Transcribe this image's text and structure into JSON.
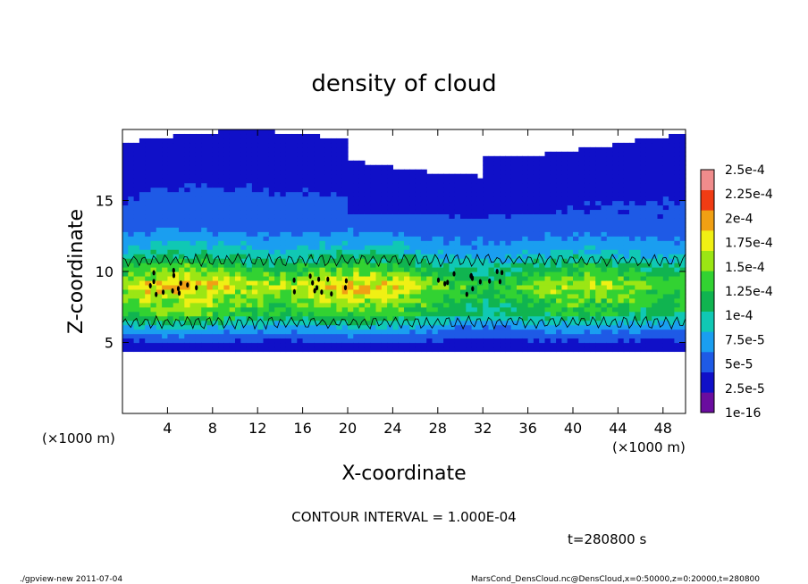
{
  "chart_data": {
    "type": "heatmap",
    "title": "density of cloud",
    "xlabel": "X-coordinate",
    "ylabel": "Z-coordinate",
    "x_unit": "(×1000 m)",
    "xlim": [
      0,
      50
    ],
    "ylim": [
      0,
      20
    ],
    "x_ticks": [
      4,
      8,
      12,
      16,
      20,
      24,
      28,
      32,
      36,
      40,
      44,
      48
    ],
    "y_ticks": [
      5,
      10,
      15
    ],
    "contour_interval_label": "CONTOUR INTERVAL = 1.000E-04",
    "time_label": "t=280800 s",
    "colorbar": {
      "labels": [
        "1e-16",
        "2.5e-5",
        "5e-5",
        "7.5e-5",
        "1e-4",
        "1.25e-4",
        "1.5e-4",
        "1.75e-4",
        "2e-4",
        "2.25e-4",
        "2.5e-4"
      ],
      "colors": [
        "#6a0d9f",
        "#1010c8",
        "#1e5ae6",
        "#1a9ef0",
        "#10c8b4",
        "#10b450",
        "#32d232",
        "#9be614",
        "#f0f014",
        "#f0a014",
        "#f03c14",
        "#f08c8c"
      ]
    },
    "profile": [
      {
        "z": 19,
        "value": 1e-16
      },
      {
        "z": 16,
        "value": 1.5e-05
      },
      {
        "z": 13,
        "value": 4e-05
      },
      {
        "z": 11,
        "value": 9e-05
      },
      {
        "z": 9,
        "value": 0.00017
      },
      {
        "z": 7,
        "value": 0.00012
      },
      {
        "z": 6,
        "value": 6e-05
      },
      {
        "z": 5,
        "value": 2e-05
      },
      {
        "z": 4.4,
        "value": 1e-16
      }
    ]
  },
  "footer": {
    "left": "./gpview-new   2011-07-04",
    "right": "MarsCond_DensCloud.nc@DensCloud,x=0:50000,z=0:20000,t=280800"
  }
}
